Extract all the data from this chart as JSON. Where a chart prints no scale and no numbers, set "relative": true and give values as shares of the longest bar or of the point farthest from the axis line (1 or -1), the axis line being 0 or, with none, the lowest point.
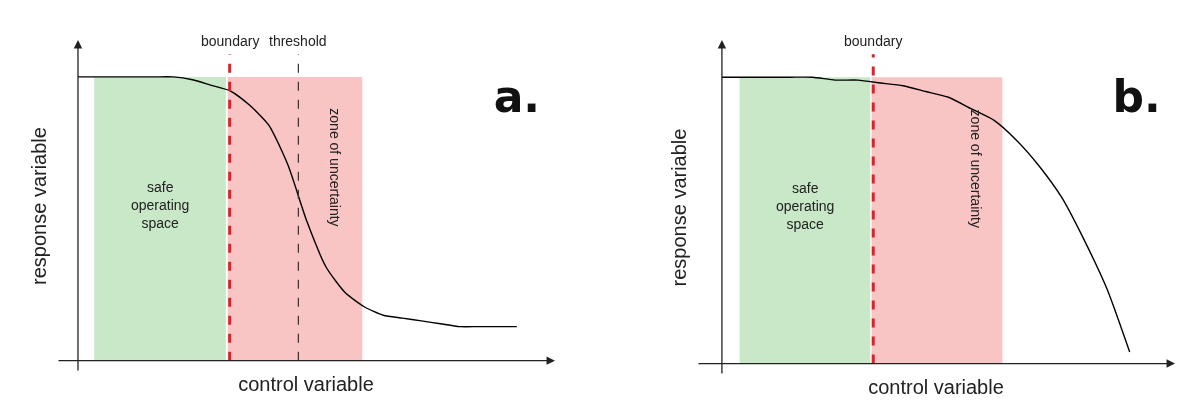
{
  "chart_data": [
    {
      "type": "line",
      "title": "a.",
      "xlabel": "control variable",
      "ylabel": "response variable",
      "relative": true,
      "categories": [
        null,
        null,
        null,
        null,
        null,
        null,
        null,
        null,
        null,
        null,
        null,
        null,
        null,
        null,
        null,
        null,
        null,
        null,
        null,
        null,
        null,
        null,
        null,
        null
      ],
      "series": [
        {
          "color": "#000000",
          "values": [
            1,
            1,
            1,
            1,
            1,
            1,
            0.99,
            0.97,
            0.95,
            0.9,
            0.83,
            0.69,
            0.49,
            0.33,
            0.24,
            0.19,
            0.16,
            0.15,
            0.14,
            0.13,
            0.12,
            0.12,
            0.12,
            0.12
          ]
        }
      ],
      "annotations": [
        "safe\noperating\nspace",
        "zone of uncertainty",
        "boundary",
        "threshold"
      ],
      "legend": false,
      "marker": "none",
      "line_style": "solid"
    },
    {
      "type": "line",
      "title": "b.",
      "xlabel": "control variable",
      "ylabel": "response variable",
      "relative": true,
      "categories": [
        null,
        null,
        null,
        null,
        null,
        null,
        null,
        null,
        null,
        null,
        null,
        null,
        null,
        null,
        null,
        null,
        null,
        null,
        null
      ],
      "series": [
        {
          "color": "#000000",
          "values": [
            1,
            1,
            1,
            1,
            1,
            0.99,
            0.99,
            0.98,
            0.97,
            0.95,
            0.93,
            0.89,
            0.85,
            0.78,
            0.69,
            0.58,
            0.43,
            0.26,
            0.04
          ]
        }
      ],
      "annotations": [
        "safe\noperating\nspace",
        "zone of uncertainty",
        "boundary"
      ],
      "legend": false,
      "marker": "none",
      "line_style": "solid"
    }
  ]
}
